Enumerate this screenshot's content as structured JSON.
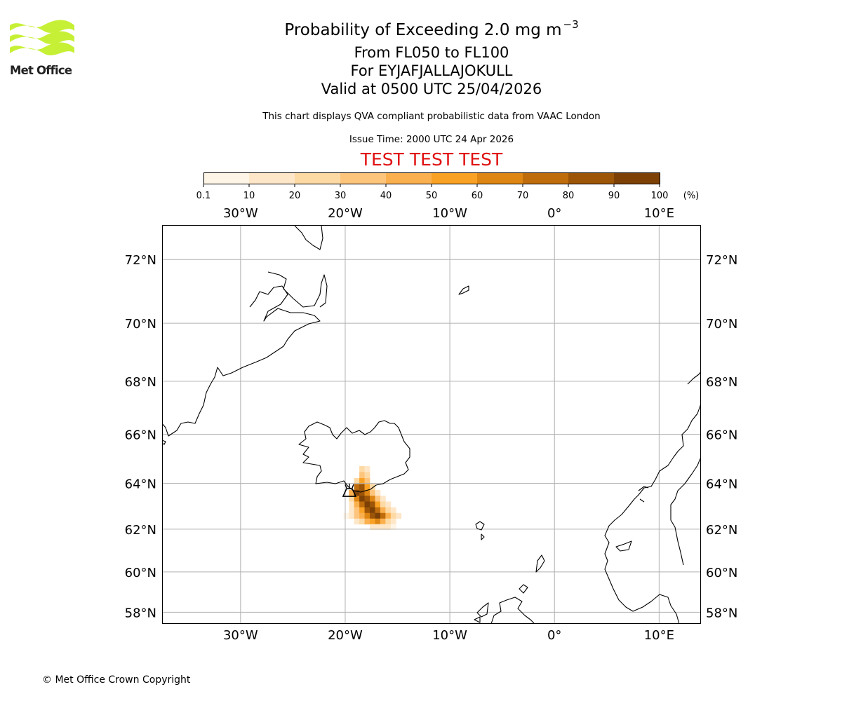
{
  "header": {
    "title": "Probability of Exceeding 2.0 mg m",
    "title_superscript": "−3",
    "flight_levels": "From FL050 to FL100",
    "volcano": "For EYJAFJALLAJOKULL",
    "valid_time": "Valid at 0500 UTC 25/04/2026",
    "disclaimer": "This chart displays QVA compliant probabilistic data from VAAC London",
    "issue_time": "Issue Time: 2000 UTC 24 Apr 2026",
    "banner": "TEST TEST TEST"
  },
  "logo": {
    "text": "Met Office",
    "color": "#c6f035"
  },
  "colorbar": {
    "boundaries": [
      "0.1",
      "10",
      "20",
      "30",
      "40",
      "50",
      "60",
      "70",
      "80",
      "90",
      "100"
    ],
    "unit_label": "(%)",
    "colors": [
      "#fff5e6",
      "#fee7c8",
      "#fdd9a4",
      "#fdc47c",
      "#fbb04f",
      "#f9a125",
      "#de8613",
      "#bf6d0c",
      "#9d5507",
      "#7d4106"
    ]
  },
  "map": {
    "lon_range": [
      -37.5,
      14
    ],
    "lat_range": [
      57.4,
      73
    ],
    "lon_ticks": [
      {
        "value": -30,
        "label": "30°W"
      },
      {
        "value": -20,
        "label": "20°W"
      },
      {
        "value": -10,
        "label": "10°W"
      },
      {
        "value": 0,
        "label": "0°"
      },
      {
        "value": 10,
        "label": "10°E"
      }
    ],
    "lat_ticks": [
      {
        "value": 72,
        "label": "72°N"
      },
      {
        "value": 70,
        "label": "70°N"
      },
      {
        "value": 68,
        "label": "68°N"
      },
      {
        "value": 66,
        "label": "66°N"
      },
      {
        "value": 64,
        "label": "64°N"
      },
      {
        "value": 62,
        "label": "62°N"
      },
      {
        "value": 60,
        "label": "60°N"
      },
      {
        "value": 58,
        "label": "58°N"
      }
    ],
    "volcano_location": {
      "lon": -19.6,
      "lat": 63.6
    },
    "plume_cells": [
      {
        "lon": -18.4,
        "lat": 64.6,
        "p": 20
      },
      {
        "lon": -17.9,
        "lat": 64.6,
        "p": 15
      },
      {
        "lon": -18.4,
        "lat": 64.35,
        "p": 35
      },
      {
        "lon": -17.9,
        "lat": 64.35,
        "p": 20
      },
      {
        "lon": -18.9,
        "lat": 64.1,
        "p": 25
      },
      {
        "lon": -18.4,
        "lat": 64.1,
        "p": 55
      },
      {
        "lon": -17.9,
        "lat": 64.1,
        "p": 35
      },
      {
        "lon": -18.9,
        "lat": 63.85,
        "p": 75
      },
      {
        "lon": -18.4,
        "lat": 63.85,
        "p": 85
      },
      {
        "lon": -17.9,
        "lat": 63.85,
        "p": 55
      },
      {
        "lon": -17.4,
        "lat": 63.85,
        "p": 25
      },
      {
        "lon": -19.4,
        "lat": 63.6,
        "p": 45
      },
      {
        "lon": -18.9,
        "lat": 63.6,
        "p": 95
      },
      {
        "lon": -18.4,
        "lat": 63.6,
        "p": 85
      },
      {
        "lon": -17.9,
        "lat": 63.6,
        "p": 65
      },
      {
        "lon": -17.4,
        "lat": 63.6,
        "p": 35
      },
      {
        "lon": -16.9,
        "lat": 63.6,
        "p": 15
      },
      {
        "lon": -19.4,
        "lat": 63.35,
        "p": 25
      },
      {
        "lon": -18.9,
        "lat": 63.35,
        "p": 65
      },
      {
        "lon": -18.4,
        "lat": 63.35,
        "p": 95
      },
      {
        "lon": -17.9,
        "lat": 63.35,
        "p": 85
      },
      {
        "lon": -17.4,
        "lat": 63.35,
        "p": 65
      },
      {
        "lon": -16.9,
        "lat": 63.35,
        "p": 35
      },
      {
        "lon": -16.4,
        "lat": 63.35,
        "p": 15
      },
      {
        "lon": -19.4,
        "lat": 63.1,
        "p": 15
      },
      {
        "lon": -18.9,
        "lat": 63.1,
        "p": 45
      },
      {
        "lon": -18.4,
        "lat": 63.1,
        "p": 75
      },
      {
        "lon": -17.9,
        "lat": 63.1,
        "p": 95
      },
      {
        "lon": -17.4,
        "lat": 63.1,
        "p": 85
      },
      {
        "lon": -16.9,
        "lat": 63.1,
        "p": 55
      },
      {
        "lon": -16.4,
        "lat": 63.1,
        "p": 25
      },
      {
        "lon": -15.9,
        "lat": 63.1,
        "p": 15
      },
      {
        "lon": -19.4,
        "lat": 62.85,
        "p": 10
      },
      {
        "lon": -18.9,
        "lat": 62.85,
        "p": 35
      },
      {
        "lon": -18.4,
        "lat": 62.85,
        "p": 55
      },
      {
        "lon": -17.9,
        "lat": 62.85,
        "p": 85
      },
      {
        "lon": -17.4,
        "lat": 62.85,
        "p": 95
      },
      {
        "lon": -16.9,
        "lat": 62.85,
        "p": 75
      },
      {
        "lon": -16.4,
        "lat": 62.85,
        "p": 45
      },
      {
        "lon": -15.9,
        "lat": 62.85,
        "p": 25
      },
      {
        "lon": -15.4,
        "lat": 62.85,
        "p": 10
      },
      {
        "lon": -19.9,
        "lat": 62.6,
        "p": 5
      },
      {
        "lon": -19.4,
        "lat": 62.6,
        "p": 15
      },
      {
        "lon": -18.9,
        "lat": 62.6,
        "p": 35
      },
      {
        "lon": -18.4,
        "lat": 62.6,
        "p": 45
      },
      {
        "lon": -17.9,
        "lat": 62.6,
        "p": 65
      },
      {
        "lon": -17.4,
        "lat": 62.6,
        "p": 85
      },
      {
        "lon": -16.9,
        "lat": 62.6,
        "p": 95
      },
      {
        "lon": -16.4,
        "lat": 62.6,
        "p": 75
      },
      {
        "lon": -15.9,
        "lat": 62.6,
        "p": 45
      },
      {
        "lon": -15.4,
        "lat": 62.6,
        "p": 25
      },
      {
        "lon": -14.9,
        "lat": 62.6,
        "p": 10
      },
      {
        "lon": -18.9,
        "lat": 62.35,
        "p": 15
      },
      {
        "lon": -18.4,
        "lat": 62.35,
        "p": 25
      },
      {
        "lon": -17.9,
        "lat": 62.35,
        "p": 45
      },
      {
        "lon": -17.4,
        "lat": 62.35,
        "p": 55
      },
      {
        "lon": -16.9,
        "lat": 62.35,
        "p": 65
      },
      {
        "lon": -16.4,
        "lat": 62.35,
        "p": 45
      },
      {
        "lon": -15.9,
        "lat": 62.35,
        "p": 25
      },
      {
        "lon": -15.4,
        "lat": 62.35,
        "p": 15
      },
      {
        "lon": -17.4,
        "lat": 62.1,
        "p": 10
      },
      {
        "lon": -16.9,
        "lat": 62.1,
        "p": 15
      },
      {
        "lon": -16.4,
        "lat": 62.1,
        "p": 15
      },
      {
        "lon": -15.9,
        "lat": 62.1,
        "p": 10
      },
      {
        "lon": -15.4,
        "lat": 62.1,
        "p": 5
      }
    ]
  },
  "footer": {
    "copyright": "© Met Office Crown Copyright"
  }
}
